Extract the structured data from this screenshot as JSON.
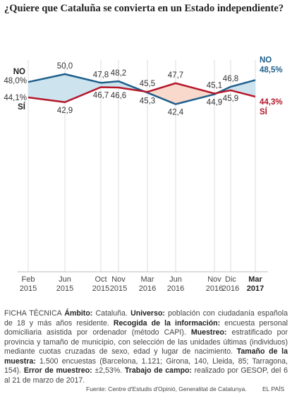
{
  "chart_data": {
    "type": "line",
    "title": "¿Quiere que Cataluña se convierta en un Estado independiente?",
    "categories": [
      "Feb 2015",
      "Jun 2015",
      "Oct 2015",
      "Nov 2015",
      "Mar 2016",
      "Jun 2016",
      "Nov 2016",
      "Dic 2016",
      "Mar 2017"
    ],
    "series": [
      {
        "name": "NO",
        "color": "#1f5f8b",
        "area_color": "#cde4ef",
        "values": [
          48.0,
          50.0,
          47.8,
          48.2,
          45.3,
          42.4,
          44.9,
          46.8,
          48.5
        ],
        "value_labels": [
          "48,0%",
          "50,0",
          "47,8",
          "48,2",
          "45,3",
          "42,4",
          "44,9",
          "46,8",
          "48,5%"
        ]
      },
      {
        "name": "SÍ",
        "color": "#b5172a",
        "area_color": "#f8d9cc",
        "values": [
          44.1,
          42.9,
          46.7,
          46.6,
          45.5,
          47.7,
          45.1,
          45.9,
          44.3
        ],
        "value_labels": [
          "44,1%",
          "42,9",
          "46,7",
          "46,6",
          "45,5",
          "47,7",
          "45,1",
          "45,9",
          "44,3%"
        ]
      }
    ],
    "ylim": [
      0,
      50
    ]
  },
  "note": [
    {
      "text": "FICHA TÉCNICA ",
      "bold": false
    },
    {
      "text": "Ámbito:",
      "bold": true
    },
    {
      "text": " Cataluña. ",
      "bold": false
    },
    {
      "text": "Universo:",
      "bold": true
    },
    {
      "text": " población con ciudadanía española de 18 y más años residente. ",
      "bold": false
    },
    {
      "text": "Recogida de la información:",
      "bold": true
    },
    {
      "text": " encuesta personal domiciliaria asistida por ordenador (método CAPI). ",
      "bold": false
    },
    {
      "text": "Muestreo:",
      "bold": true
    },
    {
      "text": " estratificado por provincia y tamaño de municipio, con selección de las unidades últimas (individuos) mediante cuotas cruzadas de sexo, edad y lugar de nacimiento. ",
      "bold": false
    },
    {
      "text": "Tamaño de la muestra:",
      "bold": true
    },
    {
      "text": " 1.500 encuestas (Barcelona, 1.121; Girona, 140, Lleida, 85; Tarragona, 154). ",
      "bold": false
    },
    {
      "text": "Error de muestreo:",
      "bold": true
    },
    {
      "text": " ±2,53%. ",
      "bold": false
    },
    {
      "text": "Trabajo de campo:",
      "bold": true
    },
    {
      "text": " realizado por GESOP,  del 6 al 21 de marzo de 2017.",
      "bold": false
    }
  ],
  "source": "Fuente: Centre d'Estudis d'Opinió, Generalitat de Catalunya.",
  "brand": "EL PAÍS"
}
